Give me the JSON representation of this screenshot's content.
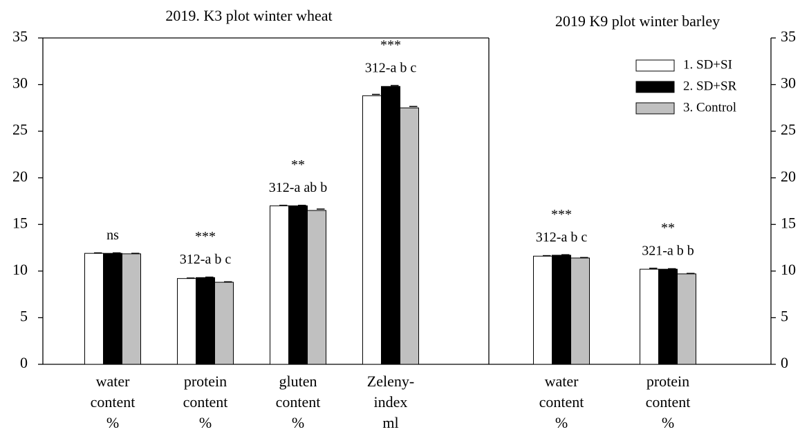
{
  "chart_data": {
    "type": "bar",
    "panels": [
      {
        "title": "2019. K3 plot winter wheat",
        "categories": [
          [
            "water",
            "content",
            "%"
          ],
          [
            "protein",
            "content",
            "%"
          ],
          [
            "gluten",
            "content",
            "%"
          ],
          [
            "Zeleny-",
            "index",
            "ml"
          ]
        ]
      },
      {
        "title": "2019 K9 plot winter barley",
        "categories": [
          [
            "water",
            "content",
            "%"
          ],
          [
            "protein",
            "content",
            "%"
          ]
        ]
      }
    ],
    "series": [
      {
        "name": "1. SD+SI",
        "color": "#ffffff",
        "values": [
          11.9,
          9.2,
          17.0,
          28.8,
          11.6,
          10.2
        ],
        "errors": [
          0.05,
          0.05,
          0.05,
          0.15,
          0.05,
          0.1
        ]
      },
      {
        "name": "2. SD+SR",
        "color": "#000000",
        "values": [
          11.9,
          9.3,
          17.0,
          29.8,
          11.7,
          10.2
        ],
        "errors": [
          0.05,
          0.05,
          0.05,
          0.1,
          0.05,
          0.05
        ]
      },
      {
        "name": "3. Control",
        "color": "#c0c0c0",
        "values": [
          11.85,
          8.8,
          16.5,
          27.5,
          11.4,
          9.7
        ],
        "errors": [
          0.05,
          0.05,
          0.15,
          0.15,
          0.05,
          0.05
        ]
      }
    ],
    "significance": [
      "ns",
      "***",
      "**",
      "***",
      "***",
      "**"
    ],
    "letters": [
      null,
      "312-a b c",
      "312-a ab b",
      "312-a b c",
      "312-a b c",
      "321-a b b"
    ],
    "ylim": [
      0,
      35
    ],
    "yticks": [
      0,
      5,
      10,
      15,
      20,
      25,
      30,
      35
    ],
    "y2lim": [
      0,
      35
    ],
    "y2ticks": [
      0,
      5,
      10,
      15,
      20,
      25,
      30,
      35
    ],
    "legend": "top-right"
  }
}
